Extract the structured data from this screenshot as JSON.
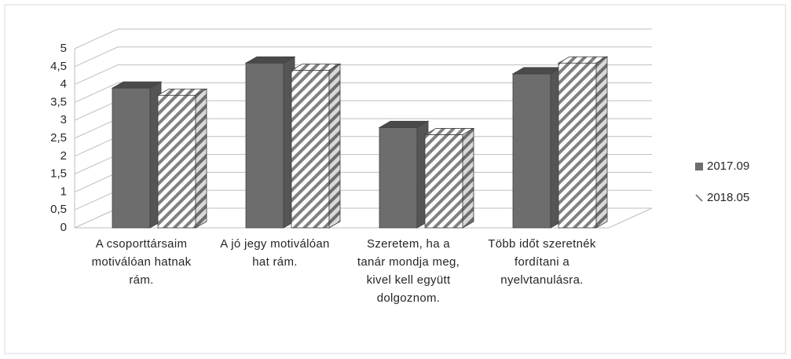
{
  "chart_data": {
    "type": "bar3d",
    "categories": [
      "A csoporttársaim motiválóan hatnak rám.",
      "A jó jegy motiválóan hat rám.",
      "Szeretem, ha a tanár mondja meg, kivel kell együtt dolgoznom.",
      "Több időt szeretnék fordítani a nyelvtanulásra."
    ],
    "series": [
      {
        "name": "2017.09",
        "color": "#6d6d6d",
        "values": [
          3.9,
          4.6,
          2.8,
          4.3
        ]
      },
      {
        "name": "2018.05",
        "color": "#808080",
        "pattern": "diagonal-stripes",
        "values": [
          3.7,
          4.4,
          2.6,
          4.6
        ]
      }
    ],
    "ylim": [
      0,
      5
    ],
    "yticks": [
      0,
      {
        "value": 0.5,
        "label": "0,5"
      },
      1,
      {
        "value": 1.5,
        "label": "1,5"
      },
      2,
      {
        "value": 2.5,
        "label": "2,5"
      },
      3,
      {
        "value": 3.5,
        "label": "3,5"
      },
      4,
      {
        "value": 4.5,
        "label": "4,5"
      },
      5
    ],
    "grid": true,
    "legend": "right"
  }
}
